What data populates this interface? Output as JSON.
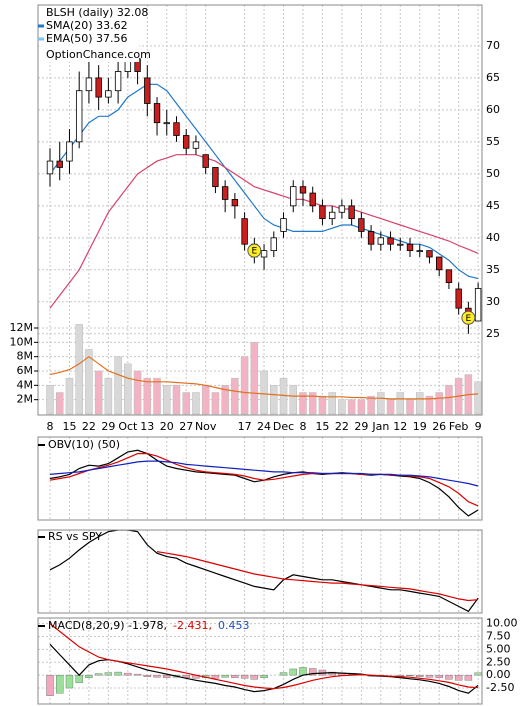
{
  "chart_data": {
    "type": "candlestick",
    "title": "BLSH (daily) 32.08",
    "watermark": "OptionChance.com",
    "grid": true,
    "categories": [
      "8",
      null,
      "15",
      null,
      "22",
      null,
      "29",
      null,
      "Oct",
      null,
      "13",
      null,
      "20",
      null,
      "27",
      null,
      "Nov",
      null,
      null,
      null,
      "17",
      null,
      "24",
      null,
      "Dec",
      null,
      "8",
      null,
      "15",
      null,
      "22",
      null,
      "29",
      null,
      "Jan",
      null,
      "12",
      null,
      "19",
      null,
      "26",
      null,
      "Feb",
      null,
      "9"
    ],
    "open": [
      50,
      52,
      52,
      55,
      63,
      65,
      62,
      63,
      66,
      68,
      65,
      61,
      58,
      58,
      56,
      54,
      53,
      51,
      48,
      46,
      43,
      39,
      37,
      38,
      41,
      45,
      48,
      47,
      45,
      43,
      44,
      45,
      43,
      41,
      39,
      40,
      39,
      39,
      38,
      38,
      37,
      35,
      32,
      29,
      27
    ],
    "high": [
      54,
      55,
      57,
      66,
      68,
      67,
      65,
      68,
      71,
      71,
      67,
      62,
      60,
      59,
      57,
      56,
      53,
      51,
      49,
      47,
      44,
      40,
      39,
      41,
      44,
      49,
      49,
      48,
      46,
      45,
      46,
      46,
      44,
      42,
      41,
      41,
      40,
      40,
      39,
      38,
      37,
      35,
      33,
      30,
      33
    ],
    "low": [
      48,
      49,
      50,
      54,
      61,
      60,
      61,
      61,
      65,
      64,
      59,
      56,
      56,
      55,
      53,
      53,
      50,
      47,
      44,
      43,
      38,
      36,
      35,
      37,
      40,
      44,
      45,
      44,
      42,
      42,
      43,
      42,
      40,
      38,
      38,
      38,
      38,
      37,
      37,
      36,
      34,
      32,
      28,
      25,
      27
    ],
    "close": [
      52,
      51,
      55,
      63,
      65,
      62,
      63,
      66,
      68,
      66,
      61,
      58,
      58,
      56,
      54,
      55,
      51,
      48,
      46,
      45,
      39,
      37,
      38,
      40,
      43,
      48,
      47,
      45,
      43,
      44,
      45,
      43,
      41,
      39,
      40,
      39,
      39,
      38,
      38,
      37,
      35,
      33,
      29,
      27,
      32.08
    ],
    "up_color": "#ffffff",
    "down_color": "#c8201e",
    "ylim": [
      12.3,
      76.4
    ],
    "yticks": [
      25,
      30,
      35,
      40,
      45,
      50,
      55,
      60,
      65,
      70
    ],
    "series": [
      {
        "name": "SMA(20) 33.62",
        "color": "#1f78c8",
        "values": [
          50,
          52,
          54,
          56,
          58,
          59,
          59,
          60,
          62,
          63,
          64,
          64,
          63,
          61,
          59,
          57,
          55,
          53,
          51,
          49,
          47,
          45,
          43,
          42,
          41.5,
          41,
          41,
          41,
          41,
          41.5,
          42,
          42,
          41.5,
          41,
          40.5,
          40,
          39.5,
          39,
          39,
          38.5,
          37.5,
          36.5,
          35,
          34,
          33.62
        ]
      },
      {
        "name": "EMA(50) 37.56",
        "color": "#7fc4ec",
        "line_color": "#d8406a",
        "values": [
          29,
          31,
          33,
          35,
          38,
          41,
          44,
          46,
          48,
          50,
          51,
          52,
          52.5,
          53,
          53,
          53,
          52.5,
          52,
          51,
          50,
          49,
          48,
          47.5,
          47,
          46.5,
          46,
          46,
          45.5,
          45,
          45,
          44.5,
          44.5,
          44,
          43.5,
          43,
          42.5,
          42,
          41.5,
          41,
          40.5,
          40,
          39.5,
          38.8,
          38.2,
          37.56
        ]
      }
    ],
    "earnings": [
      null,
      null,
      null,
      null,
      null,
      null,
      null,
      null,
      null,
      null,
      null,
      null,
      null,
      null,
      null,
      null,
      null,
      null,
      null,
      null,
      null,
      "E",
      null,
      null,
      null,
      null,
      null,
      null,
      null,
      null,
      null,
      null,
      null,
      null,
      null,
      null,
      null,
      null,
      null,
      null,
      null,
      null,
      null,
      "E",
      null
    ],
    "volume": {
      "values": [
        4000000,
        3000000,
        5000000,
        12500000,
        9000000,
        6000000,
        5000000,
        8000000,
        7000000,
        6000000,
        5000000,
        5000000,
        4000000,
        4000000,
        3000000,
        3000000,
        4000000,
        3000000,
        4000000,
        5000000,
        8000000,
        10000000,
        6000000,
        4000000,
        5000000,
        4000000,
        3000000,
        3000000,
        2500000,
        3000000,
        2000000,
        2000000,
        2000000,
        2500000,
        3000000,
        2000000,
        3000000,
        2000000,
        3000000,
        2500000,
        3000000,
        4000000,
        5000000,
        5500000,
        4500000
      ],
      "ylim": [
        0,
        12000000
      ],
      "yticks": [
        {
          "value": 2000000,
          "label": "2M"
        },
        {
          "value": 4000000,
          "label": "4M"
        },
        {
          "value": 6000000,
          "label": "6M"
        },
        {
          "value": 8000000,
          "label": "8M"
        },
        {
          "value": 10000000,
          "label": "10M"
        },
        {
          "value": 12000000,
          "label": "12M"
        }
      ],
      "up_color": "#d8d8d8",
      "down_color": "#f2b4c4",
      "average": {
        "color": "#e07020",
        "values": [
          5500000,
          5800000,
          6200000,
          7000000,
          8000000,
          7000000,
          6000000,
          5500000,
          5000000,
          4700000,
          4500000,
          4500000,
          4500000,
          4400000,
          4300000,
          4200000,
          4000000,
          3700000,
          3400000,
          3200000,
          3000000,
          2900000,
          2800000,
          2700000,
          2600000,
          2500000,
          2500000,
          2500000,
          2400000,
          2400000,
          2400000,
          2300000,
          2300000,
          2200000,
          2200000,
          2100000,
          2100000,
          2100000,
          2100000,
          2100000,
          2200000,
          2300000,
          2500000,
          2700000,
          2800000
        ]
      }
    },
    "obv": {
      "title": "OBV(10) (50)",
      "ylim": [
        0,
        100
      ],
      "series": [
        {
          "color": "#000000",
          "values": [
            50,
            52,
            55,
            62,
            66,
            65,
            68,
            75,
            82,
            84,
            80,
            72,
            65,
            62,
            60,
            58,
            57,
            56,
            55,
            54,
            50,
            46,
            48,
            52,
            55,
            57,
            58,
            56,
            55,
            56,
            57,
            56,
            55,
            54,
            55,
            54,
            53,
            52,
            50,
            45,
            38,
            28,
            15,
            5,
            12
          ]
        },
        {
          "color": "#dd0000",
          "values": [
            48,
            50,
            52,
            56,
            60,
            63,
            66,
            70,
            75,
            80,
            80,
            77,
            72,
            67,
            63,
            60,
            58,
            57,
            56,
            55,
            53,
            50,
            48,
            49,
            51,
            53,
            55,
            56,
            56,
            56,
            56,
            56,
            55,
            55,
            55,
            54,
            54,
            53,
            52,
            50,
            45,
            40,
            32,
            22,
            17
          ]
        },
        {
          "color": "#1020c0",
          "values": [
            55,
            56,
            57,
            58,
            60,
            62,
            64,
            66,
            68,
            70,
            71,
            71,
            70,
            69,
            67,
            66,
            65,
            64,
            63,
            62,
            61,
            60,
            59,
            58,
            58,
            57,
            57,
            57,
            56,
            56,
            56,
            56,
            56,
            55,
            55,
            55,
            54,
            54,
            53,
            52,
            50,
            48,
            46,
            44,
            41
          ]
        }
      ]
    },
    "rs": {
      "title": "RS vs SPY",
      "ylim": [
        0,
        100
      ],
      "series": [
        {
          "color": "#000000",
          "values": [
            52,
            58,
            66,
            76,
            85,
            92,
            98,
            100,
            100,
            98,
            82,
            72,
            68,
            66,
            60,
            56,
            52,
            48,
            44,
            40,
            36,
            32,
            30,
            28,
            40,
            46,
            44,
            42,
            40,
            40,
            38,
            36,
            34,
            32,
            30,
            28,
            28,
            26,
            24,
            22,
            20,
            14,
            8,
            2,
            18
          ]
        },
        {
          "color": "#dd0000",
          "values": [
            null,
            null,
            null,
            null,
            null,
            null,
            null,
            null,
            null,
            null,
            null,
            74,
            72,
            70,
            68,
            65,
            62,
            59,
            56,
            53,
            50,
            47,
            45,
            43,
            41,
            40,
            39,
            38,
            37,
            36,
            36,
            35,
            34,
            33,
            32,
            31,
            30,
            29,
            27,
            25,
            23,
            20,
            17,
            15,
            16
          ]
        }
      ]
    },
    "macd": {
      "title": "MACD(8,20,9) -1.978,",
      "ylim": [
        -5.6,
        11.1
      ],
      "yticks": [
        {
          "value": 10,
          "label": "10.00"
        },
        {
          "value": 7.5,
          "label": "7.50"
        },
        {
          "value": 5,
          "label": "5.00"
        },
        {
          "value": 2.5,
          "label": "2.50"
        },
        {
          "value": 0,
          "label": "0.00"
        },
        {
          "value": -2.5,
          "label": "-2.50"
        }
      ],
      "series": [
        {
          "color": "#000000",
          "values": [
            6,
            4,
            2,
            0,
            2,
            2.8,
            3,
            2.7,
            2.2,
            1.6,
            1,
            0.6,
            0.2,
            -0.2,
            -0.6,
            -1,
            -1.3,
            -1.6,
            -2,
            -2.3,
            -2.8,
            -3.2,
            -3,
            -2.6,
            -1.8,
            -0.8,
            0,
            0.3,
            0.4,
            0.5,
            0.4,
            0.3,
            0.2,
            -0.1,
            -0.2,
            -0.3,
            -0.5,
            -0.7,
            -0.9,
            -1.2,
            -1.6,
            -2.2,
            -3,
            -3.5,
            -1.978
          ]
        },
        {
          "name": "-2.431,",
          "color": "#dd0000",
          "values": [
            10,
            8.5,
            7,
            5.5,
            4.5,
            3.5,
            3,
            2.7,
            2.4,
            2.1,
            1.8,
            1.5,
            1.2,
            0.8,
            0.4,
            0,
            -0.4,
            -0.8,
            -1.2,
            -1.6,
            -2,
            -2.3,
            -2.5,
            -2.6,
            -2.4,
            -2,
            -1.5,
            -1,
            -0.6,
            -0.3,
            -0.1,
            0,
            0.1,
            0,
            -0.1,
            -0.2,
            -0.3,
            -0.4,
            -0.6,
            -0.8,
            -1.1,
            -1.4,
            -1.9,
            -2.3,
            -2.431
          ]
        }
      ],
      "histogram": {
        "name": "0.453",
        "color": "#2050c0",
        "up_color": "#9ae09a",
        "down_color": "#f2a8bc",
        "values": [
          -4,
          -3.5,
          -2.5,
          -1.5,
          -0.5,
          0.3,
          0.5,
          0.6,
          0.4,
          0.2,
          -0.3,
          -0.4,
          -0.5,
          -0.4,
          -0.5,
          -0.6,
          -0.5,
          -0.6,
          -0.4,
          -0.5,
          -0.6,
          -0.8,
          -0.5,
          0,
          0.5,
          1.2,
          1.5,
          1.3,
          1,
          0.6,
          0.4,
          0.2,
          0.1,
          -0.2,
          -0.1,
          0,
          -0.2,
          -0.1,
          -0.3,
          -0.4,
          -0.5,
          -0.8,
          -1,
          -1,
          0.453
        ]
      }
    }
  }
}
